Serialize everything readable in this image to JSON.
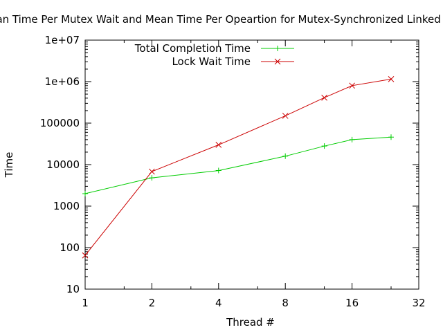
{
  "chart_data": {
    "type": "line",
    "title": "Mean Time Per Mutex Wait and Mean Time Per Opeartion for Mutex-Synchronized Linked List",
    "xlabel": "Thread #",
    "ylabel": "Time",
    "xscale": "log2",
    "yscale": "log10",
    "xlim": [
      1,
      32
    ],
    "ylim": [
      10,
      10000000
    ],
    "xticks": [
      {
        "value": 1,
        "label": "1"
      },
      {
        "value": 2,
        "label": "2"
      },
      {
        "value": 4,
        "label": "4"
      },
      {
        "value": 8,
        "label": "8"
      },
      {
        "value": 16,
        "label": "16"
      },
      {
        "value": 32,
        "label": "32"
      }
    ],
    "yticks": [
      {
        "value": 10,
        "label": "10"
      },
      {
        "value": 100,
        "label": "100"
      },
      {
        "value": 1000,
        "label": "1000"
      },
      {
        "value": 10000,
        "label": "10000"
      },
      {
        "value": 100000,
        "label": "100000"
      },
      {
        "value": 1000000,
        "label": "1e+06"
      },
      {
        "value": 10000000,
        "label": "1e+07"
      }
    ],
    "grid": false,
    "legend_position": "top-left",
    "series": [
      {
        "name": "Total Completion Time",
        "color": "#00cc00",
        "marker": "plus",
        "x": [
          1,
          2,
          4,
          8,
          12,
          16,
          24
        ],
        "y": [
          2000,
          4800,
          7200,
          16000,
          28000,
          40000,
          46000
        ]
      },
      {
        "name": "Lock Wait Time",
        "color": "#cc0000",
        "marker": "cross",
        "x": [
          1,
          2,
          4,
          8,
          12,
          16,
          24
        ],
        "y": [
          65,
          6800,
          30000,
          150000,
          410000,
          800000,
          1150000
        ]
      }
    ]
  }
}
